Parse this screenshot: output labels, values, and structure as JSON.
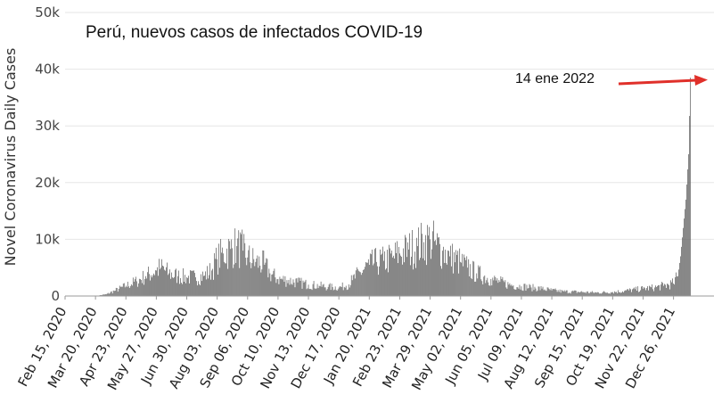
{
  "chart_data": {
    "type": "bar",
    "title": "Perú, nuevos casos de infectados COVID-19",
    "ylabel": "Novel Coronavirus Daily Cases",
    "xlabel": "",
    "ylim": [
      0,
      50000
    ],
    "yticks": [
      0,
      10000,
      20000,
      30000,
      40000,
      50000
    ],
    "ytick_labels": [
      "0",
      "10k",
      "20k",
      "30k",
      "40k",
      "50k"
    ],
    "xtick_labels": [
      "Feb 15, 2020",
      "Mar 20, 2020",
      "Apr 23, 2020",
      "May 27, 2020",
      "Jun 30, 2020",
      "Aug 03, 2020",
      "Sep 06, 2020",
      "Oct 10, 2020",
      "Nov 13, 2020",
      "Dec 17, 2020",
      "Jan 20, 2021",
      "Feb 23, 2021",
      "Mar 29, 2021",
      "May 02, 2021",
      "Jun 05, 2021",
      "Jul 09, 2021",
      "Aug 12, 2021",
      "Sep 15, 2021",
      "Oct 19, 2021",
      "Nov 22, 2021",
      "Dec 26, 2021"
    ],
    "grid": true,
    "bar_color": "#555555",
    "annotation": {
      "text": "14 ene 2022",
      "arrow_color": "#e0302a",
      "target_date": "Jan 14, 2022",
      "target_value": 38500
    },
    "x": [
      "2020-02-15",
      "2020-03-01",
      "2020-03-20",
      "2020-04-01",
      "2020-04-10",
      "2020-04-23",
      "2020-05-05",
      "2020-05-15",
      "2020-05-27",
      "2020-06-01",
      "2020-06-10",
      "2020-06-20",
      "2020-06-30",
      "2020-07-10",
      "2020-07-20",
      "2020-07-28",
      "2020-08-03",
      "2020-08-10",
      "2020-08-18",
      "2020-08-25",
      "2020-09-01",
      "2020-09-06",
      "2020-09-15",
      "2020-09-25",
      "2020-10-01",
      "2020-10-10",
      "2020-10-20",
      "2020-11-01",
      "2020-11-13",
      "2020-11-25",
      "2020-12-05",
      "2020-12-17",
      "2020-12-25",
      "2021-01-01",
      "2021-01-10",
      "2021-01-20",
      "2021-01-28",
      "2021-02-05",
      "2021-02-15",
      "2021-02-23",
      "2021-03-05",
      "2021-03-15",
      "2021-03-22",
      "2021-03-29",
      "2021-04-05",
      "2021-04-12",
      "2021-04-20",
      "2021-05-02",
      "2021-05-10",
      "2021-05-20",
      "2021-06-05",
      "2021-06-15",
      "2021-06-25",
      "2021-07-09",
      "2021-07-20",
      "2021-08-01",
      "2021-08-12",
      "2021-08-25",
      "2021-09-15",
      "2021-10-01",
      "2021-10-19",
      "2021-11-01",
      "2021-11-22",
      "2021-12-05",
      "2021-12-15",
      "2021-12-26",
      "2021-12-31",
      "2022-01-03",
      "2022-01-06",
      "2022-01-09",
      "2022-01-12",
      "2022-01-14"
    ],
    "values": [
      0,
      0,
      0,
      300,
      900,
      1800,
      2600,
      3500,
      4500,
      5000,
      4000,
      3500,
      3300,
      3300,
      3600,
      4500,
      6500,
      7500,
      8300,
      8800,
      8000,
      6800,
      6000,
      5500,
      4000,
      3000,
      2800,
      2400,
      2000,
      1800,
      1600,
      1500,
      1800,
      2800,
      4200,
      5500,
      6000,
      6200,
      6800,
      7500,
      8200,
      8800,
      9500,
      10000,
      9000,
      8000,
      7000,
      6000,
      5000,
      4000,
      3000,
      2500,
      2000,
      1700,
      1500,
      1300,
      1000,
      800,
      700,
      600,
      700,
      900,
      1300,
      1500,
      1800,
      2200,
      3500,
      7000,
      12000,
      17000,
      25000,
      38500
    ]
  }
}
